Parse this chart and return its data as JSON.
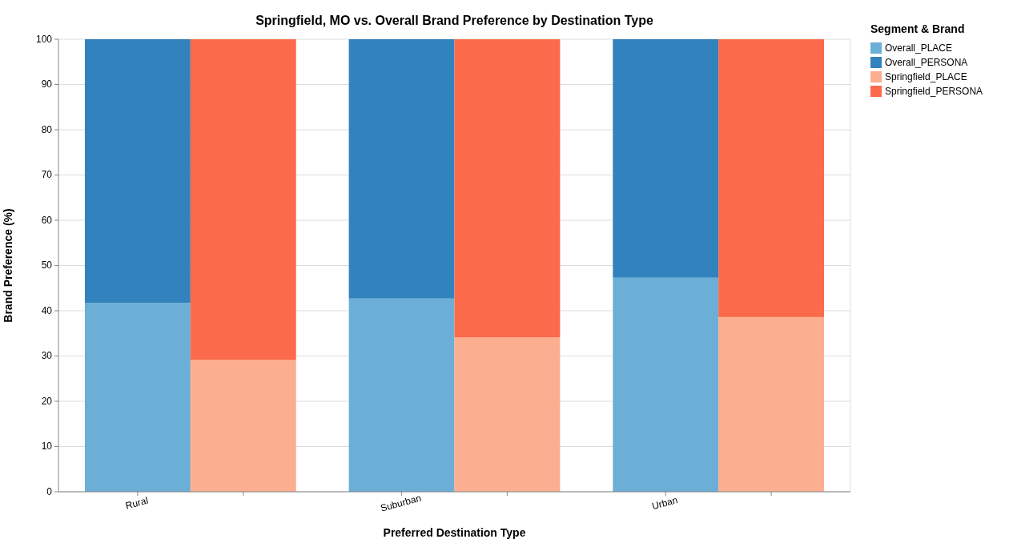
{
  "chart_data": {
    "type": "bar",
    "title": "Springfield, MO vs. Overall Brand Preference by Destination Type",
    "xlabel": "Preferred Destination Type",
    "ylabel": "Brand Preference (%)",
    "legend_title": "Segment & Brand",
    "categories": [
      "Rural",
      null,
      "Suburban",
      null,
      "Urban",
      null
    ],
    "stacked": true,
    "ylim": [
      0,
      100
    ],
    "yticks": [
      0,
      10,
      20,
      30,
      40,
      50,
      60,
      70,
      80,
      90,
      100
    ],
    "grid": "y",
    "legend": "right",
    "series": [
      {
        "name": "Overall_PLACE",
        "color": "#6baed6",
        "values": [
          41.7,
          null,
          42.7,
          null,
          47.3,
          null
        ]
      },
      {
        "name": "Overall_PERSONA",
        "color": "#3182bd",
        "values": [
          58.3,
          null,
          57.3,
          null,
          52.7,
          null
        ]
      },
      {
        "name": "Springfield_PLACE",
        "color": "#fcae91",
        "values": [
          null,
          29.1,
          null,
          34.1,
          null,
          38.6
        ]
      },
      {
        "name": "Springfield_PERSONA",
        "color": "#fb6a4a",
        "values": [
          null,
          70.9,
          null,
          65.9,
          null,
          61.4
        ]
      }
    ]
  }
}
